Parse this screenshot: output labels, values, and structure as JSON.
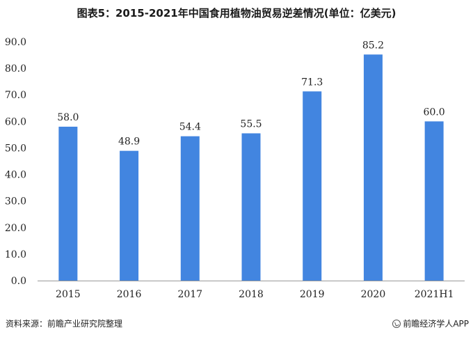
{
  "title": "图表5：2015-2021年中国食用植物油贸易逆差情况(单位：亿美元)",
  "footer": {
    "source": "资料来源：前瞻产业研究院整理",
    "brand": "前瞻经济学人APP",
    "brand_icon": "brand-logo-icon"
  },
  "colors": {
    "bar": "#4285e0",
    "axis": "#999999"
  },
  "chart_data": {
    "type": "bar",
    "title": "图表5：2015-2021年中国食用植物油贸易逆差情况(单位：亿美元)",
    "xlabel": "",
    "ylabel": "",
    "categories": [
      "2015",
      "2016",
      "2017",
      "2018",
      "2019",
      "2020",
      "2021H1"
    ],
    "values": [
      58.0,
      48.9,
      54.4,
      55.5,
      71.3,
      85.2,
      60.0
    ],
    "value_labels": [
      "58.0",
      "48.9",
      "54.4",
      "55.5",
      "71.3",
      "85.2",
      "60.0"
    ],
    "ylim": [
      0,
      90
    ],
    "yticks": [
      "0.0",
      "10.0",
      "20.0",
      "30.0",
      "40.0",
      "50.0",
      "60.0",
      "70.0",
      "80.0",
      "90.0"
    ],
    "grid": false,
    "legend": "none"
  }
}
